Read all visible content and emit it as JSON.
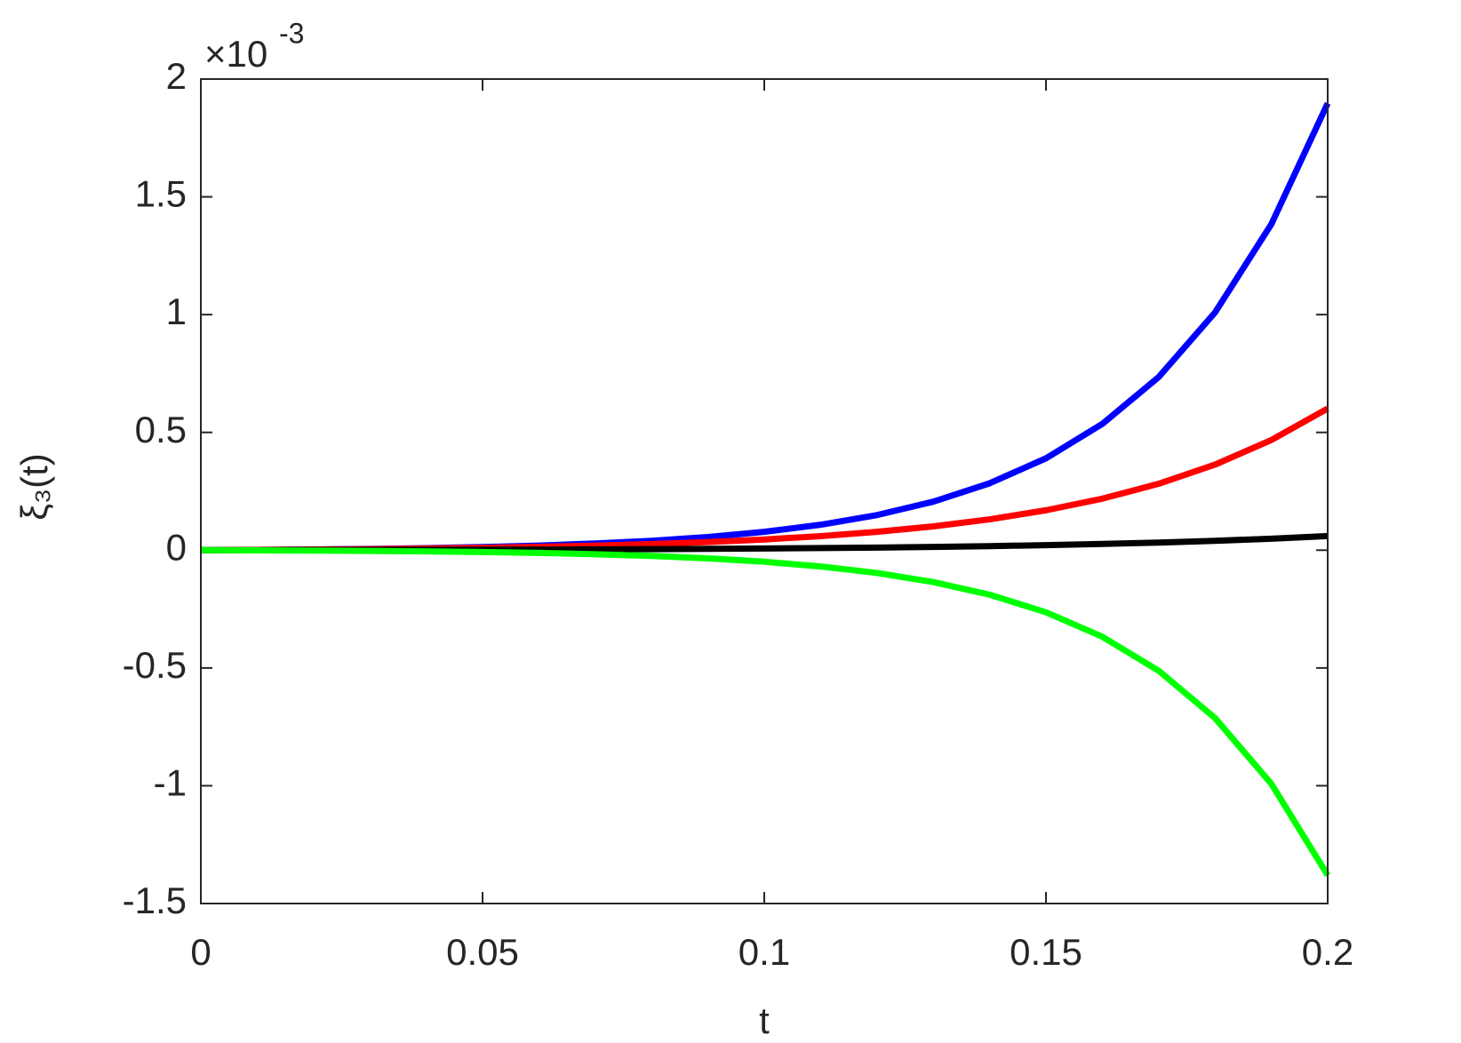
{
  "chart_data": {
    "type": "line",
    "xlabel": "t",
    "ylabel": "ξ₃(t)",
    "y_multiplier": {
      "base": "×10",
      "exponent": "-3"
    },
    "x": [
      0,
      0.01,
      0.02,
      0.03,
      0.04,
      0.05,
      0.06,
      0.07,
      0.08,
      0.09,
      0.1,
      0.11,
      0.12,
      0.13,
      0.14,
      0.15,
      0.16,
      0.17,
      0.18,
      0.19,
      0.2
    ],
    "series": [
      {
        "color": "#0000ff",
        "values": [
          0,
          0.0013,
          0.0031,
          0.0055,
          0.0088,
          0.0134,
          0.0196,
          0.0282,
          0.0399,
          0.0559,
          0.078,
          0.108,
          0.149,
          0.206,
          0.284,
          0.39,
          0.536,
          0.735,
          1.009,
          1.384,
          1.897
        ]
      },
      {
        "color": "#ff0000",
        "values": [
          0,
          0.0012,
          0.0026,
          0.0046,
          0.007,
          0.0102,
          0.0142,
          0.0194,
          0.0261,
          0.0346,
          0.0456,
          0.0597,
          0.0779,
          0.1011,
          0.131,
          0.1694,
          0.2187,
          0.282,
          0.3632,
          0.4676,
          0.6014
        ]
      },
      {
        "color": "#000000",
        "values": [
          0,
          0.0002,
          0.0006,
          0.0009,
          0.0014,
          0.0019,
          0.0026,
          0.0034,
          0.0044,
          0.0057,
          0.0072,
          0.009,
          0.0112,
          0.014,
          0.0173,
          0.0214,
          0.0264,
          0.0324,
          0.0398,
          0.0489,
          0.06
        ]
      },
      {
        "color": "#00ff00",
        "values": [
          0,
          -0.0007,
          -0.0018,
          -0.0032,
          -0.0052,
          -0.0079,
          -0.0117,
          -0.0171,
          -0.0245,
          -0.0348,
          -0.0491,
          -0.069,
          -0.0967,
          -0.1353,
          -0.1889,
          -0.2636,
          -0.3674,
          -0.5118,
          -0.7125,
          -0.9919,
          -1.38
        ]
      }
    ],
    "xlim": [
      0,
      0.2
    ],
    "xticks": [
      0,
      0.05,
      0.1,
      0.15,
      0.2
    ],
    "ylim": [
      -1.5,
      2
    ],
    "yticks": [
      -1.5,
      -1,
      -0.5,
      0,
      0.5,
      1,
      1.5,
      2
    ],
    "grid": false
  }
}
